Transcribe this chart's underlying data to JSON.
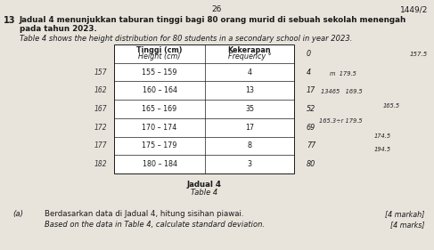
{
  "page_number_top_center": "26",
  "page_number_top_right": "1449/2",
  "question_number": "13",
  "question_text_malay_line1": "Jadual 4 menunjukkan taburan tinggi bagi 80 orang murid di sebuah sekolah menengah",
  "question_text_malay_line2": "pada tahun 2023.",
  "question_text_english": "Table 4 shows the height distribution for 80 students in a secondary school in year 2023.",
  "table_header_col1_line1": "Tinggi (cm)",
  "table_header_col1_line2": "Height (cm)",
  "table_header_col2_line1": "Kekerapan",
  "table_header_col2_line2": "Frequency °",
  "table_rows": [
    [
      "155 – 159",
      "4"
    ],
    [
      "160 – 164",
      "13"
    ],
    [
      "165 – 169",
      "35"
    ],
    [
      "170 – 174",
      "17"
    ],
    [
      "175 – 179",
      "8"
    ],
    [
      "180 – 184",
      "3"
    ]
  ],
  "table_caption_malay": "Jadual 4",
  "table_caption_english": "Table 4",
  "cum_freqs": [
    "0",
    "4",
    "17",
    "52",
    "69",
    "77",
    "80"
  ],
  "left_midpoints": [
    "157",
    "162",
    "167",
    "172",
    "177",
    "182"
  ],
  "right_notes_top": "157.5",
  "right_notes": [
    "m  179.5",
    "13465   169.5",
    "165.5",
    "165.3÷r 179.5",
    "174.5",
    "194.5"
  ],
  "part_a_label": "(a)",
  "part_a_text_malay": "Berdasarkan data di Jadual 4, hitung sisihan piawai.",
  "part_a_text_english": "Based on the data in Table 4, calculate standard deviation.",
  "part_a_marks_malay": "[4 markah]",
  "part_a_marks_english": "[4 marks]",
  "bg_color": "#e8e4dc",
  "text_color": "#1a1a1a",
  "table_bg": "#ffffff"
}
